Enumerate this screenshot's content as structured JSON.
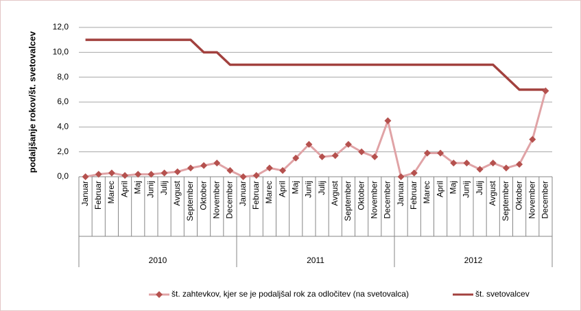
{
  "chart_data": {
    "type": "line",
    "y_axis_label": "podaljšanje rokov/št. svetovalcev",
    "categories": [
      "Januar",
      "Februar",
      "Marec",
      "April",
      "Maj",
      "Junij",
      "Julij",
      "Avgust",
      "September",
      "Oktober",
      "November",
      "December",
      "Januar",
      "Februar",
      "Marec",
      "April",
      "Maj",
      "Junij",
      "Julij",
      "Avgust",
      "September",
      "Oktober",
      "November",
      "December",
      "Januar",
      "Februar",
      "Marec",
      "April",
      "Maj",
      "Junij",
      "Julij",
      "Avgust",
      "September",
      "Oktober",
      "November",
      "December"
    ],
    "year_groups": [
      "2010",
      "2011",
      "2012"
    ],
    "series": [
      {
        "name": "št. zahtevkov, kjer se je podaljšal rok za odločitev (na svetovalca)",
        "color": "#e0a3a6",
        "marker_color": "#b5514e",
        "values": [
          0,
          0.2,
          0.3,
          0.1,
          0.2,
          0.2,
          0.3,
          0.4,
          0.7,
          0.9,
          1.1,
          0.5,
          0,
          0.1,
          0.7,
          0.5,
          1.5,
          2.6,
          1.6,
          1.7,
          2.6,
          2.0,
          1.6,
          4.5,
          0,
          0.3,
          1.9,
          1.9,
          1.1,
          1.1,
          0.6,
          1.1,
          0.7,
          1.0,
          3.0,
          6.9
        ]
      },
      {
        "name": "št. svetovalcev",
        "color": "#a2413e",
        "values": [
          11,
          11,
          11,
          11,
          11,
          11,
          11,
          11,
          11,
          10,
          10,
          9,
          9,
          9,
          9,
          9,
          9,
          9,
          9,
          9,
          9,
          9,
          9,
          9,
          9,
          9,
          9,
          9,
          9,
          9,
          9,
          9,
          8,
          7,
          7,
          7
        ]
      }
    ],
    "ylim": [
      0,
      12
    ],
    "yticks": [
      {
        "value": 0,
        "label": "0,0"
      },
      {
        "value": 2,
        "label": "2,0"
      },
      {
        "value": 4,
        "label": "4,0"
      },
      {
        "value": 6,
        "label": "6,0"
      },
      {
        "value": 8,
        "label": "8,0"
      },
      {
        "value": 10,
        "label": "10,0"
      },
      {
        "value": 12,
        "label": "12,0"
      }
    ],
    "grid": true,
    "legend": "bottom"
  }
}
